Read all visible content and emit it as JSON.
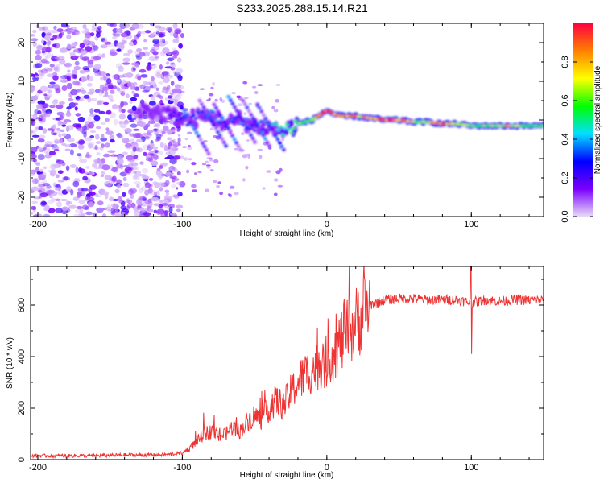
{
  "title": "S233.2025.288.15.14.R21",
  "chart_data": [
    {
      "type": "heatmap",
      "title": "S233.2025.288.15.14.R21",
      "xlabel": "Height of straight line (km)",
      "ylabel": "Frequency (Hz)",
      "xlim": [
        -205,
        150
      ],
      "ylim": [
        -25,
        25
      ],
      "xticks": [
        -200,
        -100,
        0,
        100
      ],
      "yticks": [
        -20,
        -10,
        0,
        10,
        20
      ],
      "colorbar": {
        "label": "Normalized spectral amplitude",
        "range": [
          0,
          1
        ],
        "ticks": [
          "0.0",
          "0.2",
          "0.4",
          "0.6",
          "0.8"
        ],
        "colormap": [
          "#e8dcf8",
          "#7a00ff",
          "#0000ff",
          "#00e0ff",
          "#00ff00",
          "#ffff00",
          "#ff8000",
          "#ff0040"
        ]
      },
      "ridge": {
        "x": [
          -130,
          -110,
          -100,
          -90,
          -80,
          -70,
          -60,
          -50,
          -40,
          -30,
          -20,
          -10,
          0,
          5,
          10,
          20,
          30,
          40,
          50,
          60,
          70,
          80,
          90,
          100,
          110,
          120,
          130,
          140,
          150
        ],
        "frequency": [
          3,
          1.5,
          0,
          0.5,
          1,
          -1,
          0,
          -1.5,
          -2,
          -3,
          -1,
          0,
          2.5,
          1.5,
          1,
          1,
          0.5,
          0,
          0,
          -0.5,
          -0.5,
          -1,
          -1,
          -1.5,
          -1.5,
          -1.5,
          -1.5,
          -1.5,
          -1.5
        ],
        "amplitude": [
          0.15,
          0.2,
          0.3,
          0.3,
          0.35,
          0.3,
          0.35,
          0.3,
          0.4,
          0.5,
          0.6,
          0.7,
          0.95,
          0.9,
          0.9,
          0.8,
          0.75,
          0.95,
          0.85,
          0.7,
          0.7,
          0.85,
          0.7,
          0.6,
          0.6,
          0.8,
          0.7,
          0.6,
          0.55
        ]
      }
    },
    {
      "type": "line",
      "xlabel": "Height of straight line (km)",
      "ylabel": "SNR (10 * v/v)",
      "xlim": [
        -205,
        150
      ],
      "ylim": [
        0,
        750
      ],
      "xticks": [
        -200,
        -100,
        0,
        100
      ],
      "yticks": [
        0,
        200,
        400,
        600
      ],
      "series": [
        {
          "name": "SNR",
          "color": "#ee3333",
          "x": [
            -205,
            -180,
            -160,
            -140,
            -120,
            -110,
            -100,
            -95,
            -90,
            -85,
            -80,
            -75,
            -70,
            -65,
            -60,
            -55,
            -50,
            -45,
            -40,
            -35,
            -30,
            -25,
            -20,
            -15,
            -10,
            -5,
            0,
            5,
            10,
            15,
            20,
            25,
            30,
            40,
            50,
            60,
            70,
            80,
            90,
            95,
            100,
            105,
            110,
            120,
            130,
            140,
            150
          ],
          "y": [
            15,
            15,
            15,
            18,
            18,
            20,
            25,
            45,
            70,
            100,
            110,
            90,
            100,
            130,
            110,
            150,
            170,
            160,
            200,
            230,
            210,
            260,
            300,
            330,
            350,
            370,
            380,
            420,
            460,
            500,
            530,
            570,
            600,
            620,
            625,
            625,
            620,
            620,
            620,
            615,
            610,
            615,
            620,
            615,
            620,
            618,
            620
          ]
        }
      ],
      "annotations": [
        {
          "x": 100,
          "y": 750,
          "note": "spike"
        },
        {
          "x": 100,
          "y": 410,
          "note": "dip"
        }
      ]
    }
  ]
}
